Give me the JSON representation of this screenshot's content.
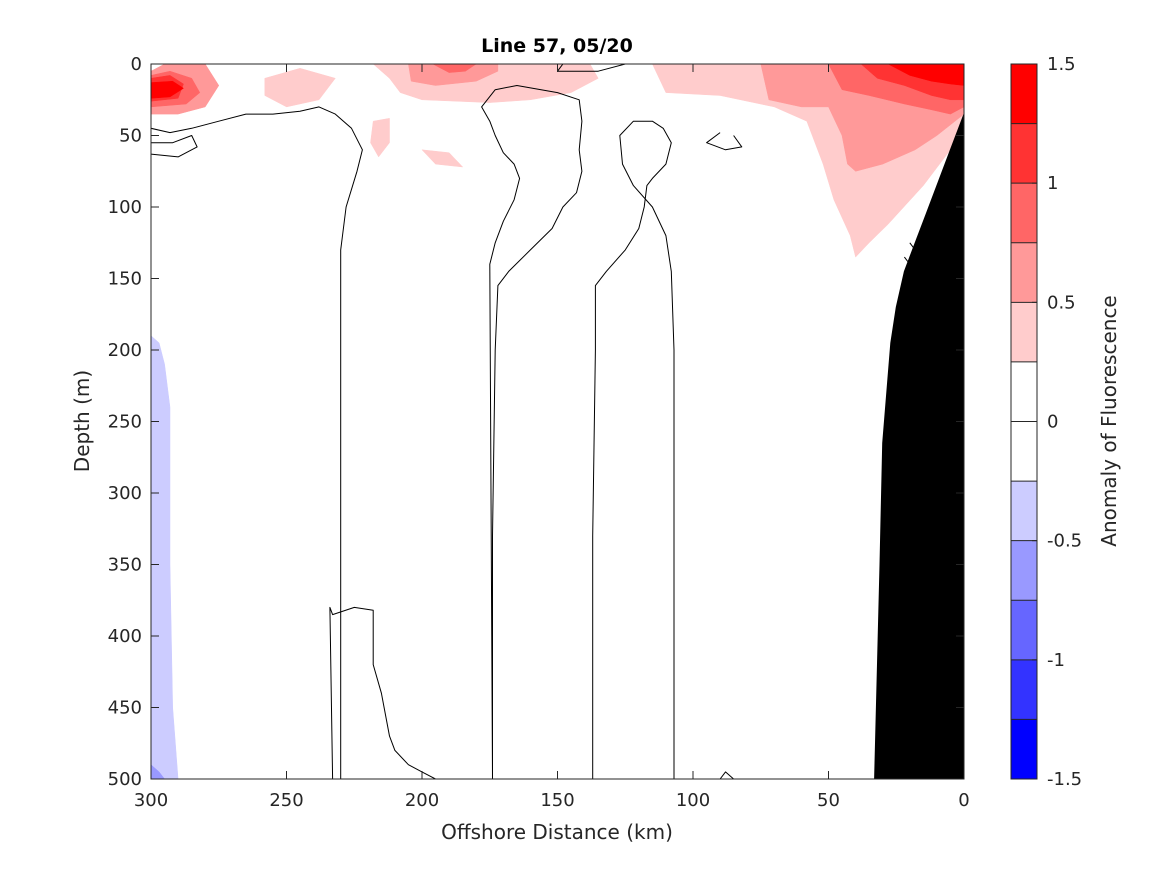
{
  "chart_data": {
    "type": "contour",
    "title": "Line 57, 05/20",
    "xlabel": "Offshore Distance (km)",
    "ylabel": "Depth (m)",
    "xlim": [
      300,
      0
    ],
    "ylim": [
      0,
      500
    ],
    "x_reversed": true,
    "y_reversed": true,
    "xticks": [
      "300",
      "250",
      "200",
      "150",
      "100",
      "50",
      "0"
    ],
    "yticks": [
      "0",
      "50",
      "100",
      "150",
      "200",
      "250",
      "300",
      "350",
      "400",
      "450",
      "500"
    ],
    "colorbar": {
      "label": "Anomaly of Fluorescence",
      "range": [
        -1.5,
        1.5
      ],
      "levels": [
        -1.5,
        -1.25,
        -1,
        -0.75,
        -0.5,
        -0.25,
        0,
        0.25,
        0.5,
        0.75,
        1,
        1.25,
        1.5
      ],
      "ticks": [
        "1.5",
        "1",
        "0.5",
        "0",
        "-0.5",
        "-1",
        "-1.5"
      ],
      "colors": [
        "#0000ff",
        "#3333ff",
        "#6666ff",
        "#9999ff",
        "#ccccff",
        "#ffffff",
        "#ffffff",
        "#ffcccc",
        "#ff9999",
        "#ff6666",
        "#ff3333",
        "#ff0000"
      ]
    },
    "bathymetry_color": "#000000",
    "bathymetry": [
      [
        0,
        35
      ],
      [
        5,
        60
      ],
      [
        10,
        85
      ],
      [
        14,
        105
      ],
      [
        18,
        125
      ],
      [
        22,
        145
      ],
      [
        25,
        170
      ],
      [
        27,
        195
      ],
      [
        30,
        265
      ],
      [
        31,
        350
      ],
      [
        33,
        500
      ],
      [
        0,
        500
      ]
    ],
    "filled_regions": [
      {
        "level": 0.5,
        "points": [
          [
            300,
            5
          ],
          [
            295,
            0
          ],
          [
            280,
            0
          ],
          [
            275,
            15
          ],
          [
            280,
            30
          ],
          [
            290,
            35
          ],
          [
            300,
            35
          ]
        ]
      },
      {
        "level": 0.75,
        "points": [
          [
            300,
            8
          ],
          [
            293,
            5
          ],
          [
            285,
            10
          ],
          [
            282,
            20
          ],
          [
            287,
            28
          ],
          [
            300,
            30
          ]
        ]
      },
      {
        "level": 1.0,
        "points": [
          [
            300,
            10
          ],
          [
            293,
            8
          ],
          [
            288,
            14
          ],
          [
            290,
            24
          ],
          [
            300,
            26
          ]
        ]
      },
      {
        "level": 1.25,
        "points": [
          [
            300,
            13
          ],
          [
            292,
            12
          ],
          [
            288,
            17
          ],
          [
            293,
            23
          ],
          [
            300,
            24
          ]
        ]
      },
      {
        "level": 0.25,
        "points": [
          [
            258,
            10
          ],
          [
            245,
            3
          ],
          [
            232,
            10
          ],
          [
            238,
            25
          ],
          [
            250,
            30
          ],
          [
            258,
            22
          ]
        ]
      },
      {
        "level": 0.25,
        "points": [
          [
            218,
            40
          ],
          [
            212,
            38
          ],
          [
            212,
            55
          ],
          [
            216,
            65
          ],
          [
            219,
            55
          ]
        ]
      },
      {
        "level": 0.25,
        "points": [
          [
            200,
            60
          ],
          [
            190,
            62
          ],
          [
            185,
            72
          ],
          [
            195,
            70
          ]
        ]
      },
      {
        "level": 0.25,
        "points": [
          [
            218,
            0
          ],
          [
            212,
            10
          ],
          [
            208,
            20
          ],
          [
            200,
            25
          ],
          [
            175,
            27
          ],
          [
            160,
            25
          ],
          [
            145,
            20
          ],
          [
            135,
            10
          ],
          [
            138,
            0
          ]
        ]
      },
      {
        "level": 0.5,
        "points": [
          [
            205,
            0
          ],
          [
            204,
            12
          ],
          [
            195,
            15
          ],
          [
            180,
            12
          ],
          [
            172,
            5
          ],
          [
            172,
            0
          ]
        ]
      },
      {
        "level": 0.75,
        "points": [
          [
            196,
            0
          ],
          [
            190,
            6
          ],
          [
            184,
            5
          ],
          [
            180,
            0
          ]
        ]
      },
      {
        "level": 0.25,
        "points": [
          [
            115,
            0
          ],
          [
            110,
            20
          ],
          [
            90,
            22
          ],
          [
            70,
            30
          ],
          [
            58,
            40
          ],
          [
            52,
            70
          ],
          [
            48,
            95
          ],
          [
            42,
            120
          ],
          [
            40,
            135
          ],
          [
            35,
            125
          ],
          [
            28,
            112
          ],
          [
            15,
            85
          ],
          [
            5,
            60
          ],
          [
            0,
            35
          ],
          [
            0,
            0
          ]
        ]
      },
      {
        "level": 0.5,
        "points": [
          [
            75,
            0
          ],
          [
            72,
            25
          ],
          [
            60,
            30
          ],
          [
            50,
            30
          ],
          [
            45,
            50
          ],
          [
            43,
            70
          ],
          [
            40,
            75
          ],
          [
            30,
            70
          ],
          [
            18,
            60
          ],
          [
            10,
            50
          ],
          [
            0,
            35
          ],
          [
            0,
            0
          ]
        ]
      },
      {
        "level": 0.75,
        "points": [
          [
            50,
            0
          ],
          [
            45,
            18
          ],
          [
            35,
            22
          ],
          [
            22,
            28
          ],
          [
            12,
            32
          ],
          [
            5,
            35
          ],
          [
            0,
            30
          ],
          [
            0,
            0
          ]
        ]
      },
      {
        "level": 1.0,
        "points": [
          [
            38,
            0
          ],
          [
            32,
            10
          ],
          [
            22,
            15
          ],
          [
            12,
            22
          ],
          [
            5,
            25
          ],
          [
            0,
            25
          ],
          [
            0,
            0
          ]
        ]
      },
      {
        "level": 1.25,
        "points": [
          [
            28,
            0
          ],
          [
            20,
            8
          ],
          [
            12,
            12
          ],
          [
            5,
            14
          ],
          [
            0,
            15
          ],
          [
            0,
            0
          ]
        ]
      },
      {
        "level": -0.25,
        "points": [
          [
            300,
            75
          ],
          [
            295,
            75
          ],
          [
            290,
            80
          ],
          [
            288,
            95
          ],
          [
            288,
            250
          ],
          [
            287,
            400
          ],
          [
            286,
            500
          ],
          [
            300,
            500
          ]
        ]
      },
      {
        "level": -0.5,
        "points": [
          [
            300,
            190
          ],
          [
            297,
            195
          ],
          [
            295,
            210
          ],
          [
            293,
            240
          ],
          [
            293,
            350
          ],
          [
            292,
            450
          ],
          [
            290,
            500
          ],
          [
            300,
            500
          ]
        ]
      },
      {
        "level": -0.75,
        "points": [
          [
            300,
            490
          ],
          [
            297,
            495
          ],
          [
            295,
            500
          ],
          [
            300,
            500
          ]
        ]
      }
    ],
    "contour_lines": [
      [
        [
          300,
          45
        ],
        [
          293,
          48
        ],
        [
          285,
          45
        ],
        [
          275,
          40
        ],
        [
          265,
          35
        ],
        [
          255,
          35
        ],
        [
          245,
          33
        ],
        [
          238,
          30
        ],
        [
          232,
          35
        ],
        [
          226,
          45
        ],
        [
          222,
          60
        ],
        [
          224,
          75
        ],
        [
          228,
          100
        ],
        [
          230,
          130
        ],
        [
          230,
          200
        ],
        [
          230,
          350
        ],
        [
          230,
          500
        ]
      ],
      [
        [
          300,
          55
        ],
        [
          292,
          55
        ],
        [
          285,
          50
        ],
        [
          283,
          58
        ],
        [
          290,
          65
        ],
        [
          300,
          63
        ]
      ],
      [
        [
          174,
          500
        ],
        [
          174,
          330
        ],
        [
          173,
          200
        ],
        [
          172,
          155
        ],
        [
          168,
          145
        ],
        [
          160,
          130
        ],
        [
          152,
          115
        ],
        [
          148,
          100
        ],
        [
          143,
          90
        ],
        [
          141,
          75
        ],
        [
          142,
          60
        ],
        [
          141,
          40
        ],
        [
          142,
          25
        ],
        [
          150,
          20
        ],
        [
          165,
          15
        ],
        [
          173,
          18
        ],
        [
          178,
          30
        ],
        [
          175,
          40
        ],
        [
          173,
          50
        ],
        [
          170,
          62
        ],
        [
          166,
          70
        ],
        [
          164,
          80
        ],
        [
          166,
          95
        ],
        [
          170,
          110
        ],
        [
          173,
          125
        ],
        [
          175,
          140
        ],
        [
          174,
          500
        ]
      ],
      [
        [
          137,
          500
        ],
        [
          137,
          330
        ],
        [
          136,
          200
        ],
        [
          136,
          155
        ],
        [
          132,
          145
        ],
        [
          125,
          130
        ],
        [
          120,
          115
        ],
        [
          118,
          100
        ],
        [
          117,
          85
        ],
        [
          115,
          80
        ],
        [
          110,
          70
        ],
        [
          108,
          55
        ],
        [
          111,
          45
        ],
        [
          115,
          40
        ],
        [
          122,
          40
        ],
        [
          127,
          50
        ],
        [
          126,
          70
        ],
        [
          122,
          85
        ],
        [
          115,
          100
        ],
        [
          110,
          120
        ],
        [
          108,
          145
        ],
        [
          107,
          200
        ],
        [
          107,
          500
        ]
      ],
      [
        [
          233,
          500
        ],
        [
          234,
          380
        ],
        [
          233,
          385
        ],
        [
          225,
          380
        ],
        [
          218,
          382
        ],
        [
          218,
          420
        ],
        [
          215,
          440
        ],
        [
          214,
          450
        ],
        [
          212,
          470
        ],
        [
          210,
          480
        ],
        [
          205,
          490
        ],
        [
          200,
          495
        ],
        [
          195,
          500
        ]
      ],
      [
        [
          90,
          48
        ],
        [
          95,
          55
        ],
        [
          88,
          60
        ],
        [
          82,
          58
        ],
        [
          85,
          50
        ]
      ],
      [
        [
          90,
          500
        ],
        [
          88,
          495
        ],
        [
          85,
          500
        ]
      ],
      [
        [
          20,
          125
        ],
        [
          18,
          130
        ],
        [
          16,
          145
        ],
        [
          15,
          150
        ],
        [
          18,
          160
        ],
        [
          22,
          155
        ],
        [
          20,
          140
        ],
        [
          22,
          135
        ]
      ],
      [
        [
          148,
          0
        ],
        [
          150,
          5
        ],
        [
          135,
          5
        ],
        [
          125,
          0
        ]
      ]
    ]
  }
}
